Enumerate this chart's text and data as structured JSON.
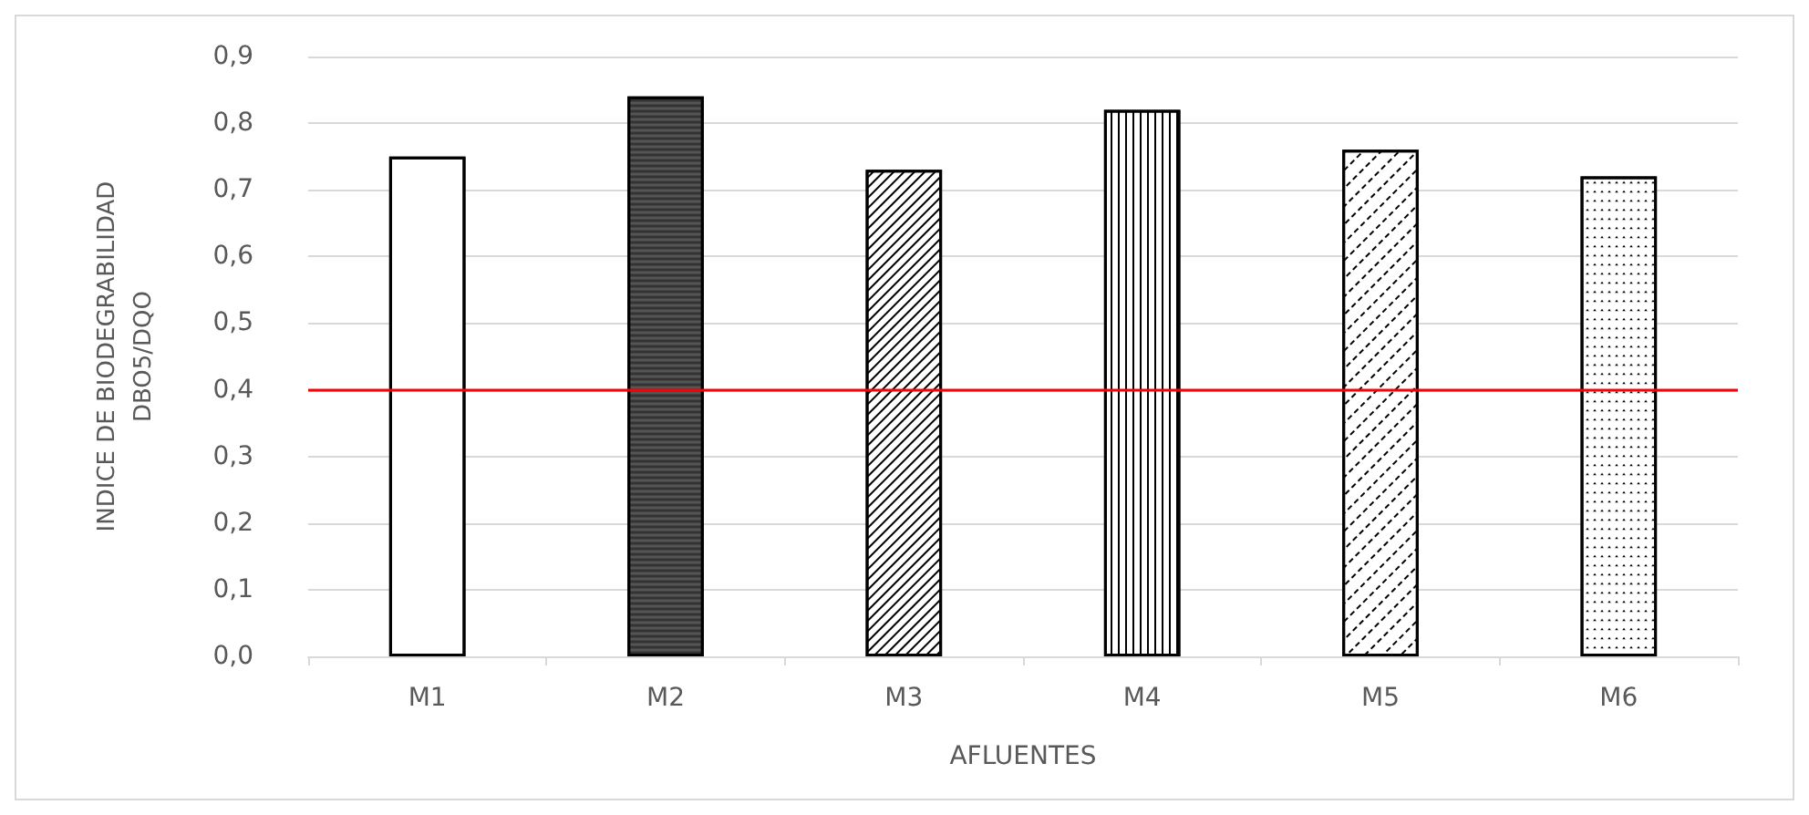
{
  "chart_data": {
    "type": "bar",
    "xlabel": "AFLUENTES",
    "ylabel": "INDICE DE BIODEGRABILIDAD\nDBO5/DQO",
    "categories": [
      "M1",
      "M2",
      "M3",
      "M4",
      "M5",
      "M6"
    ],
    "values": [
      0.75,
      0.84,
      0.73,
      0.82,
      0.76,
      0.72
    ],
    "colors": [
      "#ffffff",
      "#555555",
      "#ffffff",
      "#ffffff",
      "#ffffff",
      "#ffffff"
    ],
    "ylim": [
      0,
      0.9
    ],
    "yticks": [
      {
        "value": 0,
        "label": "0,0"
      },
      {
        "value": 0.1,
        "label": "0,1"
      },
      {
        "value": 0.2,
        "label": "0,2"
      },
      {
        "value": 0.3,
        "label": "0,3"
      },
      {
        "value": 0.4,
        "label": "0,4"
      },
      {
        "value": 0.5,
        "label": "0,5"
      },
      {
        "value": 0.6,
        "label": "0,6"
      },
      {
        "value": 0.7,
        "label": "0,7"
      },
      {
        "value": 0.8,
        "label": "0,8"
      },
      {
        "value": 0.9,
        "label": "0,9"
      }
    ],
    "ref_lines": [
      {
        "axis": "y",
        "value": 0.4,
        "color": "#ff0000",
        "line_style": "solid"
      }
    ],
    "grid": "y"
  }
}
